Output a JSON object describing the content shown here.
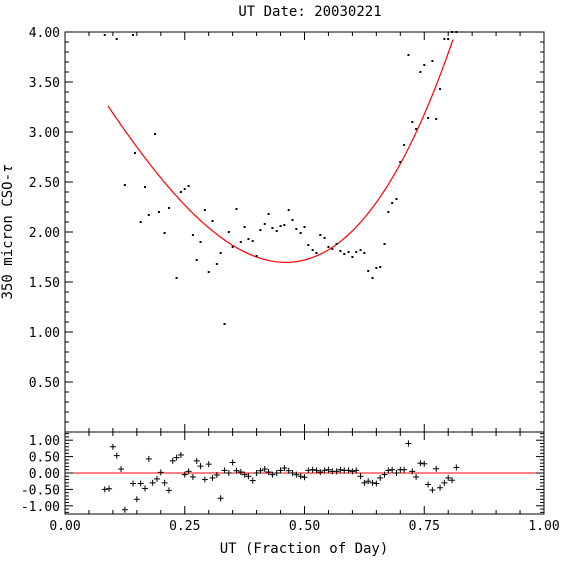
{
  "chart_data": [
    {
      "type": "scatter",
      "title": "UT Date: 20030221",
      "xlabel": "",
      "ylabel": "350 micron CSO-",
      "ylabel_symbol": "τ",
      "xlim": [
        0.0,
        1.0
      ],
      "ylim": [
        0.0,
        4.0
      ],
      "yticks": [
        "0.50",
        "1.00",
        "1.50",
        "2.00",
        "2.50",
        "3.00",
        "3.50",
        "4.00"
      ],
      "yticks_values": [
        0.5,
        1.0,
        1.5,
        2.0,
        2.5,
        3.0,
        3.5,
        4.0
      ],
      "grid": false,
      "series": [
        {
          "kind": "points",
          "x": [
            0.083,
            0.108,
            0.125,
            0.142,
            0.146,
            0.158,
            0.167,
            0.175,
            0.188,
            0.196,
            0.208,
            0.217,
            0.233,
            0.242,
            0.25,
            0.258,
            0.267,
            0.275,
            0.283,
            0.292,
            0.3,
            0.308,
            0.317,
            0.325,
            0.333,
            0.342,
            0.35,
            0.358,
            0.367,
            0.375,
            0.383,
            0.392,
            0.4,
            0.408,
            0.417,
            0.425,
            0.433,
            0.442,
            0.45,
            0.458,
            0.467,
            0.475,
            0.483,
            0.492,
            0.5,
            0.508,
            0.517,
            0.525,
            0.533,
            0.542,
            0.55,
            0.558,
            0.567,
            0.575,
            0.583,
            0.592,
            0.6,
            0.608,
            0.617,
            0.625,
            0.633,
            0.642,
            0.65,
            0.658,
            0.667,
            0.675,
            0.683,
            0.692,
            0.7,
            0.708,
            0.717,
            0.725,
            0.733,
            0.742,
            0.75,
            0.758,
            0.767,
            0.775,
            0.783,
            0.792,
            0.8,
            0.808,
            0.817
          ],
          "y": [
            3.97,
            3.93,
            2.47,
            3.97,
            2.79,
            2.1,
            2.45,
            2.17,
            2.98,
            2.2,
            1.99,
            2.24,
            1.54,
            2.4,
            2.43,
            2.46,
            1.97,
            1.72,
            1.9,
            2.22,
            1.6,
            2.11,
            1.68,
            1.79,
            1.08,
            2.0,
            1.85,
            2.23,
            1.9,
            2.05,
            1.93,
            1.91,
            1.76,
            2.02,
            2.08,
            2.18,
            2.04,
            2.01,
            2.06,
            2.07,
            2.22,
            2.12,
            2.03,
            1.99,
            2.05,
            1.87,
            1.82,
            1.79,
            1.97,
            1.94,
            1.85,
            1.83,
            1.88,
            1.81,
            1.78,
            1.8,
            1.75,
            1.8,
            1.82,
            1.79,
            1.61,
            1.54,
            1.64,
            1.65,
            1.88,
            2.2,
            2.29,
            2.33,
            2.7,
            2.87,
            3.77,
            3.1,
            3.03,
            3.6,
            3.67,
            3.14,
            3.71,
            3.13,
            3.43,
            3.93,
            3.93,
            4.0,
            4.0
          ]
        },
        {
          "kind": "fit-curve",
          "color": "#ff0000"
        }
      ]
    },
    {
      "type": "scatter",
      "title": "",
      "xlabel": "UT (Fraction of Day)",
      "ylabel": "",
      "xlim": [
        0.0,
        1.0
      ],
      "ylim": [
        -1.25,
        1.25
      ],
      "xticks": [
        "0.00",
        "0.25",
        "0.50",
        "0.75",
        "1.00"
      ],
      "xticks_values": [
        0.0,
        0.25,
        0.5,
        0.75,
        1.0
      ],
      "yticks": [
        "-1.00",
        "-0.50",
        "0.00",
        "0.50",
        "1.00"
      ],
      "yticks_values": [
        -1.0,
        -0.5,
        0.0,
        0.5,
        1.0
      ],
      "grid": false,
      "series": [
        {
          "kind": "residuals",
          "marker": "+",
          "x": [
            0.083,
            0.092,
            0.1,
            0.108,
            0.117,
            0.125,
            0.142,
            0.15,
            0.158,
            0.167,
            0.175,
            0.183,
            0.192,
            0.2,
            0.208,
            0.217,
            0.225,
            0.233,
            0.242,
            0.25,
            0.258,
            0.267,
            0.275,
            0.283,
            0.292,
            0.3,
            0.308,
            0.317,
            0.325,
            0.333,
            0.342,
            0.35,
            0.358,
            0.367,
            0.375,
            0.383,
            0.392,
            0.4,
            0.408,
            0.417,
            0.425,
            0.433,
            0.442,
            0.45,
            0.458,
            0.467,
            0.475,
            0.483,
            0.492,
            0.5,
            0.508,
            0.517,
            0.525,
            0.533,
            0.542,
            0.55,
            0.558,
            0.567,
            0.575,
            0.583,
            0.592,
            0.6,
            0.608,
            0.617,
            0.625,
            0.633,
            0.642,
            0.65,
            0.658,
            0.667,
            0.675,
            0.683,
            0.692,
            0.7,
            0.708,
            0.717,
            0.725,
            0.733,
            0.742,
            0.75,
            0.758,
            0.767,
            0.775,
            0.783,
            0.792,
            0.8,
            0.808,
            0.817
          ],
          "y": [
            -0.5,
            -0.48,
            0.8,
            0.53,
            0.12,
            -1.12,
            -0.32,
            -0.8,
            -0.32,
            -0.47,
            0.43,
            -0.3,
            -0.18,
            0.02,
            -0.3,
            -0.53,
            0.37,
            0.47,
            0.55,
            -0.05,
            0.05,
            -0.12,
            0.37,
            0.21,
            -0.2,
            0.27,
            -0.15,
            -0.06,
            -0.77,
            0.08,
            0.0,
            0.32,
            0.07,
            0.03,
            -0.05,
            -0.1,
            -0.23,
            0.0,
            0.07,
            0.12,
            0.03,
            -0.05,
            0.0,
            0.08,
            0.15,
            0.07,
            0.0,
            -0.05,
            -0.1,
            -0.13,
            0.08,
            0.1,
            0.08,
            0.03,
            0.08,
            0.1,
            0.05,
            0.05,
            0.1,
            0.08,
            0.08,
            0.05,
            0.08,
            -0.1,
            -0.3,
            -0.25,
            -0.3,
            -0.32,
            -0.15,
            -0.05,
            0.08,
            0.1,
            0.0,
            0.1,
            0.1,
            0.9,
            0.05,
            -0.12,
            0.3,
            0.28,
            -0.35,
            -0.52,
            0.13,
            -0.45,
            -0.3,
            -0.15,
            -0.22,
            0.17
          ]
        },
        {
          "kind": "zero-line",
          "color": "#ff0000"
        }
      ]
    }
  ]
}
